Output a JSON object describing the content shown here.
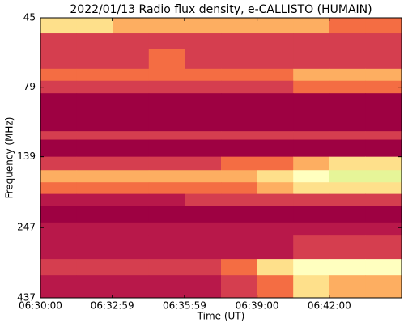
{
  "chart_data": {
    "type": "heatmap",
    "title": "2022/01/13  Radio flux density, e-CALLISTO (HUMAIN)",
    "x_label": "Time (UT)",
    "y_label": "Frequency (MHz)",
    "x": [
      23400,
      23490,
      23580,
      23670,
      23760,
      23850,
      23940,
      24030,
      24120,
      24210,
      24300
    ],
    "y": [
      45,
      51,
      58,
      68,
      75,
      83,
      113,
      121,
      139,
      155,
      171,
      188,
      208,
      237,
      262,
      319,
      364,
      437
    ],
    "values": [
      [
        5,
        5,
        4,
        4,
        4,
        4,
        4,
        4,
        3,
        3
      ],
      [
        2,
        2,
        2,
        2,
        2,
        2,
        2,
        2,
        2,
        2
      ],
      [
        2,
        2,
        2,
        3,
        2,
        2,
        2,
        2,
        2,
        2
      ],
      [
        3,
        3,
        3,
        3,
        3,
        3,
        3,
        4,
        4,
        4
      ],
      [
        2,
        2,
        2,
        2,
        2,
        2,
        2,
        3,
        3,
        3
      ],
      [
        0,
        0,
        0,
        0,
        0,
        0,
        0,
        0,
        0,
        0
      ],
      [
        2,
        2,
        2,
        2,
        2,
        2,
        2,
        2,
        2,
        2
      ],
      [
        0,
        0,
        0,
        0,
        0,
        0,
        0,
        0,
        0,
        0
      ],
      [
        2,
        2,
        2,
        2,
        2,
        3,
        3,
        4,
        5,
        5
      ],
      [
        4,
        4,
        4,
        4,
        4,
        4,
        5,
        6,
        7,
        7
      ],
      [
        3,
        3,
        3,
        3,
        3,
        3,
        4,
        5,
        5,
        5
      ],
      [
        1,
        1,
        1,
        1,
        2,
        2,
        2,
        2,
        2,
        2
      ],
      [
        0,
        0,
        0,
        0,
        0,
        0,
        0,
        0,
        0,
        0
      ],
      [
        1,
        1,
        1,
        1,
        1,
        1,
        1,
        1,
        1,
        1
      ],
      [
        1,
        1,
        1,
        1,
        1,
        1,
        1,
        2,
        2,
        2
      ],
      [
        2,
        2,
        2,
        2,
        2,
        3,
        5,
        6,
        6,
        6
      ],
      [
        1,
        1,
        1,
        1,
        1,
        2,
        3,
        5,
        4,
        4
      ]
    ],
    "colormap": [
      "#9e0142",
      "#b8184a",
      "#d53e4f",
      "#f46d43",
      "#fdae61",
      "#fee08b",
      "#ffffbf",
      "#e6f598",
      "#abdda4",
      "#66c2a5"
    ],
    "xlim": [
      23400,
      24300
    ],
    "ylim": [
      45,
      437
    ],
    "yscale": "log",
    "y_inverted": true,
    "xticks": [
      {
        "value": 23400,
        "label": "06:30:00"
      },
      {
        "value": 23579,
        "label": "06:32:59"
      },
      {
        "value": 23759,
        "label": "06:35:59"
      },
      {
        "value": 23940,
        "label": "06:39:00"
      },
      {
        "value": 24120,
        "label": "06:42:00"
      }
    ],
    "yticks": [
      45,
      79,
      139,
      247,
      437
    ]
  }
}
